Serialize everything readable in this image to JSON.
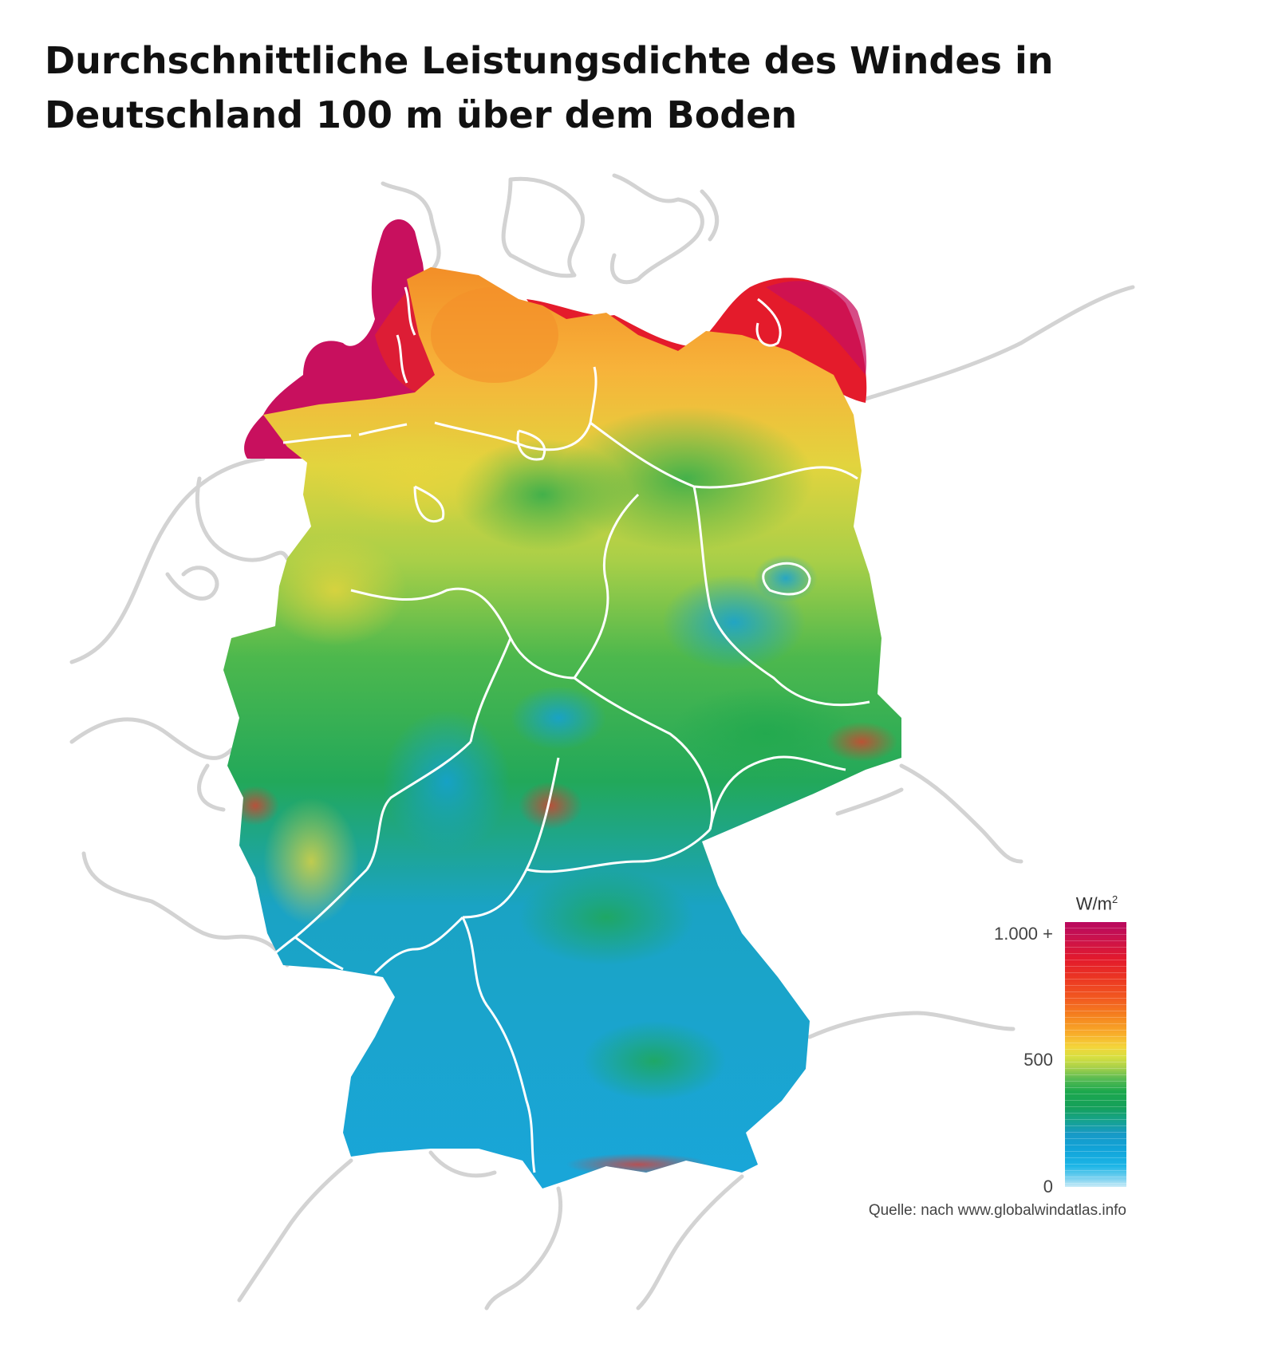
{
  "title": {
    "line1": "Durchschnittliche Leistungsdichte des Windes in",
    "line2": "Deutschland 100 m über dem Boden"
  },
  "legend": {
    "unit": "W/m",
    "unit_superscript": "2",
    "ticks": [
      {
        "label": "1.000 +",
        "value": 1000
      },
      {
        "label": "500",
        "value": 500
      },
      {
        "label": "0",
        "value": 0
      }
    ],
    "colors": {
      "max": "#b8085e",
      "high": "#e31a2c",
      "upper_mid": "#f5861f",
      "mid": "#f4d43a",
      "lower_mid": "#1ca84d",
      "low": "#1799c6",
      "min": "#c9ebf7"
    }
  },
  "source": "Quelle: nach www.globalwindatlas.info",
  "map": {
    "land_colors": {
      "north_sea_coast": "#d4145a",
      "baltic_coast": "#e31a2c",
      "northern_lowland": "#f5c23a",
      "central": "#3db54a",
      "southern": "#1aa5d8"
    },
    "border_color": "#ffffff",
    "neighbor_outline_color": "#d3d3d3"
  }
}
